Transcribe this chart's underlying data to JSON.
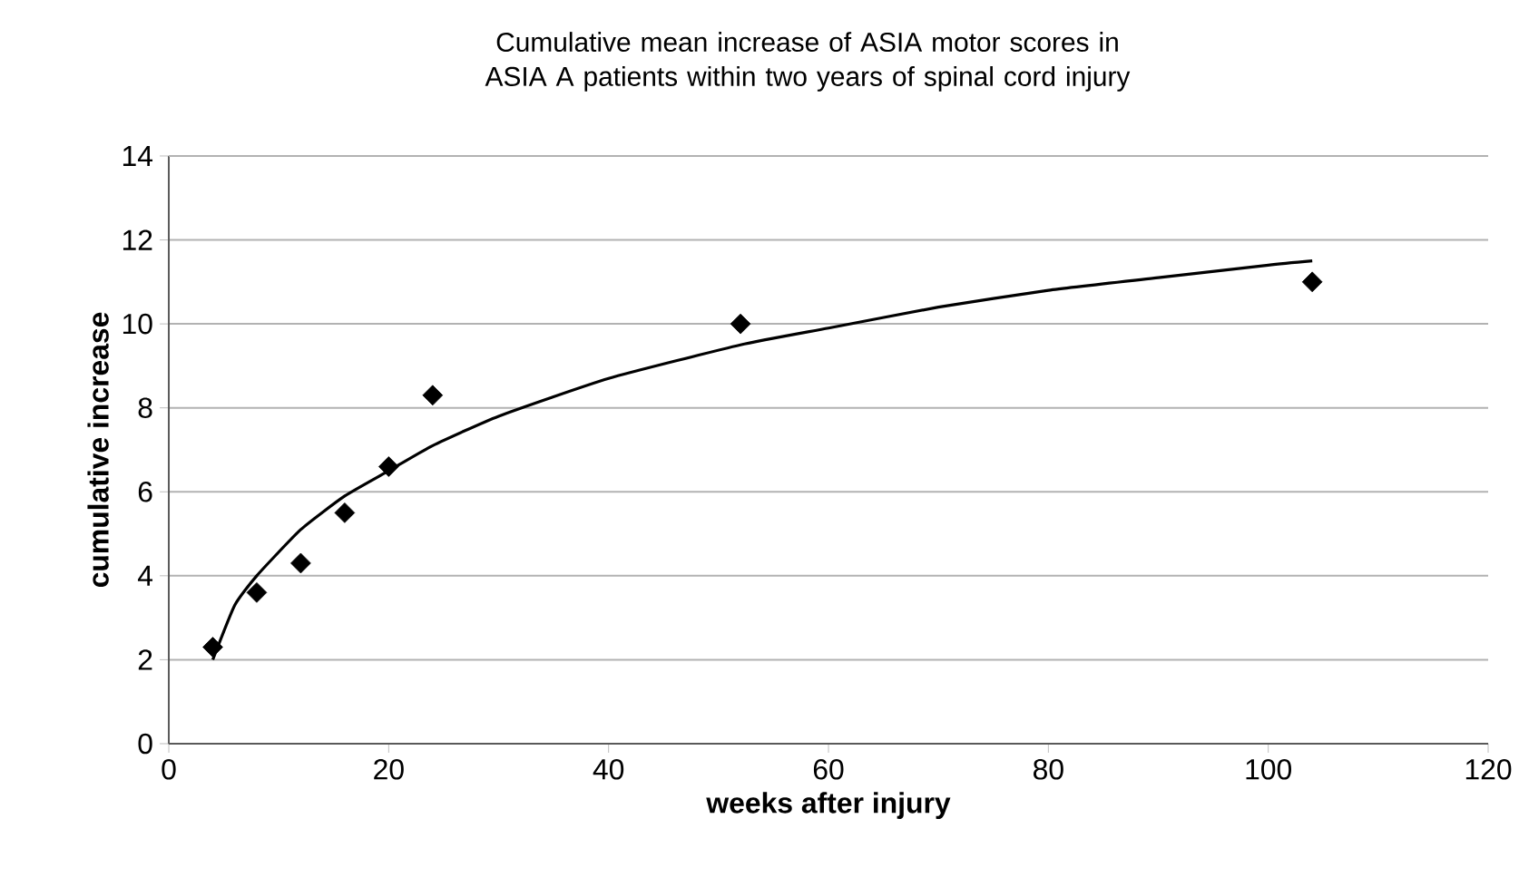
{
  "chart_data": {
    "type": "scatter",
    "title": "Cumulative mean increase of ASIA motor scores in ASIA A patients within two years of spinal cord injury",
    "xlabel": "weeks after injury",
    "ylabel": "cumulative increase",
    "series": [
      {
        "color": "#000000",
        "marker": "diamond",
        "x": [
          4,
          8,
          12,
          16,
          20,
          24,
          52,
          104
        ],
        "values": [
          2.3,
          3.6,
          4.3,
          5.5,
          6.6,
          8.3,
          10,
          11
        ]
      },
      {
        "type": "line",
        "color": "#000000",
        "x": [
          4,
          6,
          8,
          12,
          16,
          20,
          24,
          30,
          40,
          52,
          60,
          70,
          80,
          90,
          100,
          104
        ],
        "values": [
          2.0,
          3.3,
          4.0,
          5.1,
          5.9,
          6.5,
          7.1,
          7.8,
          8.7,
          9.5,
          9.9,
          10.4,
          10.8,
          11.1,
          11.4,
          11.5
        ]
      }
    ],
    "xlim": [
      0,
      120
    ],
    "ylim": [
      0,
      14
    ],
    "xticks": [
      0,
      20,
      40,
      60,
      80,
      100,
      120
    ],
    "yticks": [
      0,
      2,
      4,
      6,
      8,
      10,
      12,
      14
    ],
    "grid": "y"
  }
}
